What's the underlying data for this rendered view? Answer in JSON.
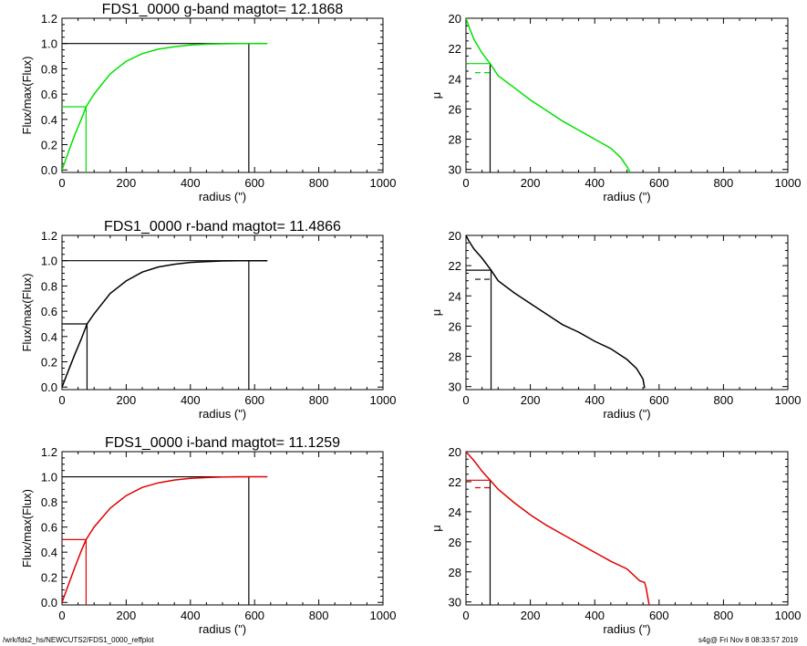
{
  "footer": {
    "path": "/wrk/fds2_hs/NEWCUTS2/FDS1_0000_reffplot",
    "stamp": "s4g@  Fri Nov  8 08:33:57 2019"
  },
  "chart_data": [
    {
      "type": "line",
      "title": "FDS1_0000 g-band  magtot=     12.1868",
      "xlabel": "radius (\")",
      "ylabel": "Flux/max(Flux)",
      "xlim": [
        0,
        1000
      ],
      "ylim": [
        -0.02,
        1.2
      ],
      "xticks": [
        0,
        200,
        400,
        600,
        800,
        1000
      ],
      "yticks": [
        0.0,
        0.2,
        0.4,
        0.6,
        0.8,
        1.0,
        1.2
      ],
      "color": "#00e000",
      "series": [
        {
          "x": [
            0,
            20,
            40,
            60,
            75,
            100,
            150,
            200,
            250,
            300,
            350,
            400,
            450,
            500,
            550,
            600,
            640
          ],
          "y": [
            0,
            0.14,
            0.28,
            0.4,
            0.5,
            0.6,
            0.76,
            0.86,
            0.92,
            0.955,
            0.975,
            0.988,
            0.995,
            0.998,
            1.0,
            1.0,
            1.0
          ]
        }
      ],
      "half_light_radius": 75,
      "total_radius": 582
    },
    {
      "type": "line",
      "xlabel": "radius (\")",
      "ylabel": "μ",
      "xlim": [
        0,
        1000
      ],
      "ylim": [
        30.2,
        20
      ],
      "xticks": [
        0,
        200,
        400,
        600,
        800,
        1000
      ],
      "yticks": [
        20,
        22,
        24,
        26,
        28,
        30
      ],
      "color": "#00e000",
      "series": [
        {
          "x": [
            0,
            10,
            25,
            50,
            75,
            100,
            150,
            200,
            250,
            300,
            350,
            400,
            450,
            480,
            500,
            510
          ],
          "y": [
            20.0,
            20.6,
            21.4,
            22.3,
            23.0,
            23.8,
            24.6,
            25.4,
            26.1,
            26.8,
            27.4,
            28.0,
            28.6,
            29.2,
            29.8,
            30.2
          ]
        }
      ],
      "mu_eff": 23.0,
      "mu_mean_eff": 23.6,
      "half_light_radius": 75
    },
    {
      "type": "line",
      "title": "FDS1_0000 r-band  magtot=     11.4866",
      "xlabel": "radius (\")",
      "ylabel": "Flux/max(Flux)",
      "xlim": [
        0,
        1000
      ],
      "ylim": [
        -0.02,
        1.2
      ],
      "xticks": [
        0,
        200,
        400,
        600,
        800,
        1000
      ],
      "yticks": [
        0.0,
        0.2,
        0.4,
        0.6,
        0.8,
        1.0,
        1.2
      ],
      "color": "#000000",
      "series": [
        {
          "x": [
            0,
            20,
            40,
            60,
            78,
            100,
            150,
            200,
            250,
            300,
            350,
            400,
            450,
            500,
            550,
            600,
            640
          ],
          "y": [
            0,
            0.13,
            0.26,
            0.38,
            0.5,
            0.58,
            0.74,
            0.84,
            0.91,
            0.95,
            0.972,
            0.986,
            0.993,
            0.998,
            1.0,
            1.0,
            1.0
          ]
        }
      ],
      "half_light_radius": 78,
      "total_radius": 582
    },
    {
      "type": "line",
      "xlabel": "radius (\")",
      "ylabel": "μ",
      "xlim": [
        0,
        1000
      ],
      "ylim": [
        30.2,
        20
      ],
      "xticks": [
        0,
        200,
        400,
        600,
        800,
        1000
      ],
      "yticks": [
        20,
        22,
        24,
        26,
        28,
        30
      ],
      "color": "#000000",
      "series": [
        {
          "x": [
            0,
            10,
            25,
            50,
            78,
            100,
            150,
            200,
            250,
            300,
            350,
            400,
            450,
            500,
            530,
            550,
            555
          ],
          "y": [
            20.0,
            20.4,
            20.9,
            21.5,
            22.3,
            23.0,
            23.8,
            24.5,
            25.2,
            25.9,
            26.4,
            27.0,
            27.5,
            28.2,
            28.8,
            29.5,
            30.1
          ]
        }
      ],
      "mu_eff": 22.3,
      "mu_mean_eff": 22.9,
      "half_light_radius": 78
    },
    {
      "type": "line",
      "title": "FDS1_0000 i-band  magtot=     11.1259",
      "xlabel": "radius (\")",
      "ylabel": "Flux/max(Flux)",
      "xlim": [
        0,
        1000
      ],
      "ylim": [
        -0.02,
        1.2
      ],
      "xticks": [
        0,
        200,
        400,
        600,
        800,
        1000
      ],
      "yticks": [
        0.0,
        0.2,
        0.4,
        0.6,
        0.8,
        1.0,
        1.2
      ],
      "color": "#e00000",
      "series": [
        {
          "x": [
            0,
            20,
            40,
            60,
            75,
            100,
            150,
            200,
            250,
            300,
            350,
            400,
            450,
            500,
            550,
            600,
            640
          ],
          "y": [
            0,
            0.14,
            0.28,
            0.41,
            0.5,
            0.6,
            0.75,
            0.85,
            0.915,
            0.952,
            0.974,
            0.987,
            0.994,
            0.998,
            1.0,
            1.0,
            1.0
          ]
        }
      ],
      "half_light_radius": 75,
      "total_radius": 582
    },
    {
      "type": "line",
      "xlabel": "radius (\")",
      "ylabel": "μ",
      "xlim": [
        0,
        1000
      ],
      "ylim": [
        30.2,
        20
      ],
      "xticks": [
        0,
        200,
        400,
        600,
        800,
        1000
      ],
      "yticks": [
        20,
        22,
        24,
        26,
        28,
        30
      ],
      "color": "#e00000",
      "series": [
        {
          "x": [
            0,
            25,
            50,
            75,
            100,
            150,
            200,
            250,
            300,
            350,
            400,
            450,
            500,
            520,
            540,
            555,
            560,
            565,
            570
          ],
          "y": [
            20.0,
            20.6,
            21.3,
            21.9,
            22.5,
            23.4,
            24.2,
            24.9,
            25.5,
            26.1,
            26.7,
            27.3,
            27.8,
            28.2,
            28.6,
            28.7,
            29.1,
            29.7,
            30.3
          ]
        }
      ],
      "mu_eff": 21.9,
      "mu_mean_eff": 22.4,
      "half_light_radius": 75
    }
  ]
}
